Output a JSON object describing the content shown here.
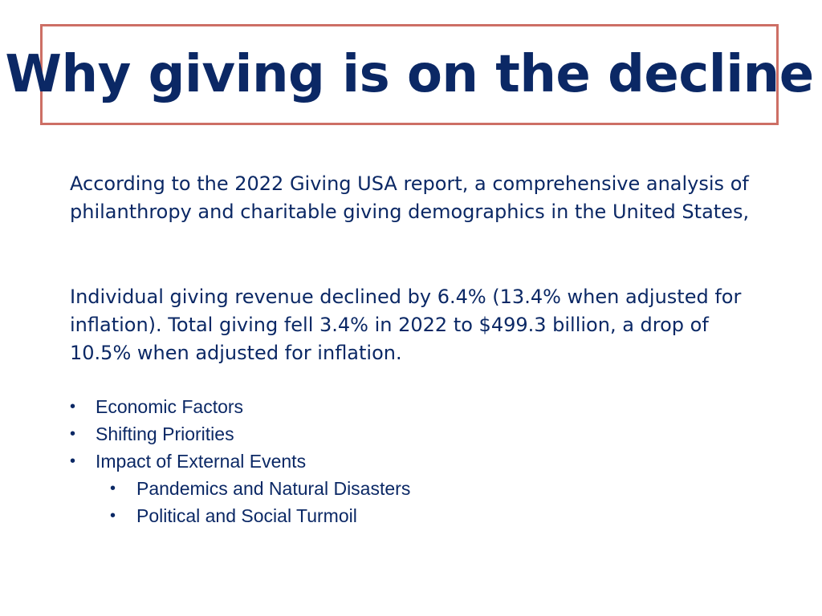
{
  "slide": {
    "title": "Why giving is on the decline",
    "paragraphs": [
      "According to the 2022 Giving USA report, a comprehensive analysis of philanthropy and charitable giving demographics in the United States,",
      "Individual giving revenue declined by 6.4% (13.4% when adjusted for inflation).  Total giving fell 3.4% in 2022 to $499.3 billion, a drop of 10.5% when adjusted for inflation."
    ],
    "bullets": [
      {
        "label": "Economic Factors",
        "level": 1
      },
      {
        "label": "Shifting Priorities",
        "level": 1
      },
      {
        "label": "Impact of External Events",
        "level": 1
      },
      {
        "label": "Pandemics and Natural Disasters",
        "level": 2
      },
      {
        "label": "Political and Social Turmoil",
        "level": 2
      }
    ],
    "bullet_glyph": "•"
  },
  "colors": {
    "title_text": "#0b2865",
    "title_border": "#cd6f65",
    "body_text": "#0b2865"
  }
}
